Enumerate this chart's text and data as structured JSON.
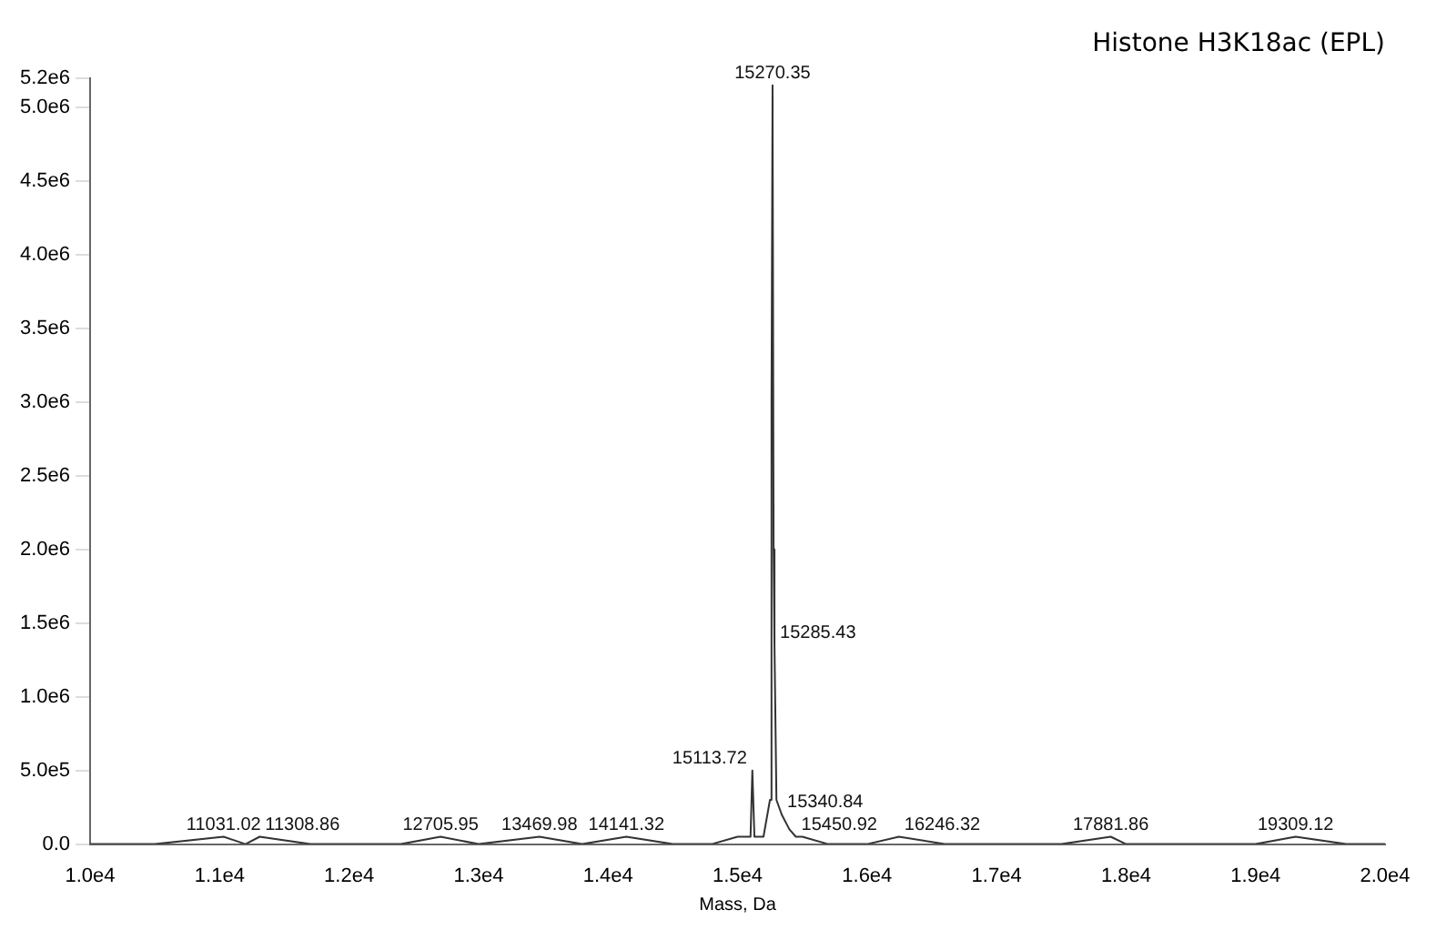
{
  "chart_data": {
    "type": "line",
    "title": "Histone H3K18ac (EPL)",
    "xlabel": "Mass, Da",
    "x": [
      10000,
      10500,
      11031,
      11200,
      11309,
      11700,
      12000,
      12400,
      12706,
      13000,
      13470,
      13800,
      14141,
      14500,
      14800,
      15000,
      15100,
      15114,
      15130,
      15200,
      15250,
      15262,
      15270,
      15278,
      15285,
      15300,
      15341,
      15400,
      15450,
      15500,
      15700,
      16000,
      16246,
      16600,
      17000,
      17500,
      17882,
      18000,
      18500,
      19000,
      19309,
      19700,
      20000
    ],
    "series": [
      {
        "color": "#333333",
        "values": [
          0,
          0,
          50000,
          0,
          50000,
          0,
          0,
          0,
          50000,
          0,
          50000,
          0,
          50000,
          0,
          0,
          50000,
          50000,
          500000,
          50000,
          50000,
          300000,
          3000000,
          5150000,
          2000000,
          1350000,
          300000,
          200000,
          100000,
          50000,
          50000,
          0,
          0,
          50000,
          0,
          0,
          0,
          50000,
          0,
          0,
          0,
          50000,
          0,
          0
        ]
      }
    ],
    "annotations": [
      {
        "text": "11031.02",
        "x": 11031,
        "y": 50000
      },
      {
        "text": "11308.86",
        "x": 11309,
        "y": 50000
      },
      {
        "text": "12705.95",
        "x": 12706,
        "y": 50000
      },
      {
        "text": "13469.98",
        "x": 13470,
        "y": 50000
      },
      {
        "text": "14141.32",
        "x": 14141,
        "y": 50000
      },
      {
        "text": "15113.72",
        "x": 15114,
        "y": 500000
      },
      {
        "text": "15270.35",
        "x": 15270,
        "y": 5150000
      },
      {
        "text": "15285.43",
        "x": 15285,
        "y": 1350000
      },
      {
        "text": "15340.84",
        "x": 15341,
        "y": 200000
      },
      {
        "text": "15450.92",
        "x": 15450,
        "y": 50000
      },
      {
        "text": "16246.32",
        "x": 16246,
        "y": 50000
      },
      {
        "text": "17881.86",
        "x": 17882,
        "y": 50000
      },
      {
        "text": "19309.12",
        "x": 19309,
        "y": 50000
      }
    ],
    "xlim": [
      10000,
      20000
    ],
    "xticks": [
      {
        "value": 10000,
        "label": "1.0e4"
      },
      {
        "value": 11000,
        "label": "1.1e4"
      },
      {
        "value": 12000,
        "label": "1.2e4"
      },
      {
        "value": 13000,
        "label": "1.3e4"
      },
      {
        "value": 14000,
        "label": "1.4e4"
      },
      {
        "value": 15000,
        "label": "1.5e4"
      },
      {
        "value": 16000,
        "label": "1.6e4"
      },
      {
        "value": 17000,
        "label": "1.7e4"
      },
      {
        "value": 18000,
        "label": "1.8e4"
      },
      {
        "value": 19000,
        "label": "1.9e4"
      },
      {
        "value": 20000,
        "label": "2.0e4"
      }
    ],
    "ylim": [
      0,
      5200000
    ],
    "yticks": [
      {
        "value": 0,
        "label": "0.0"
      },
      {
        "value": 500000,
        "label": "5.0e5"
      },
      {
        "value": 1000000,
        "label": "1.0e6"
      },
      {
        "value": 1500000,
        "label": "1.5e6"
      },
      {
        "value": 2000000,
        "label": "2.0e6"
      },
      {
        "value": 2500000,
        "label": "2.5e6"
      },
      {
        "value": 3000000,
        "label": "3.0e6"
      },
      {
        "value": 3500000,
        "label": "3.5e6"
      },
      {
        "value": 4000000,
        "label": "4.0e6"
      },
      {
        "value": 4500000,
        "label": "4.5e6"
      },
      {
        "value": 5000000,
        "label": "5.0e6"
      },
      {
        "value": 5200000,
        "label": "5.2e6"
      }
    ],
    "grid": false,
    "legend": false,
    "marker": "none",
    "line_style": "solid"
  }
}
